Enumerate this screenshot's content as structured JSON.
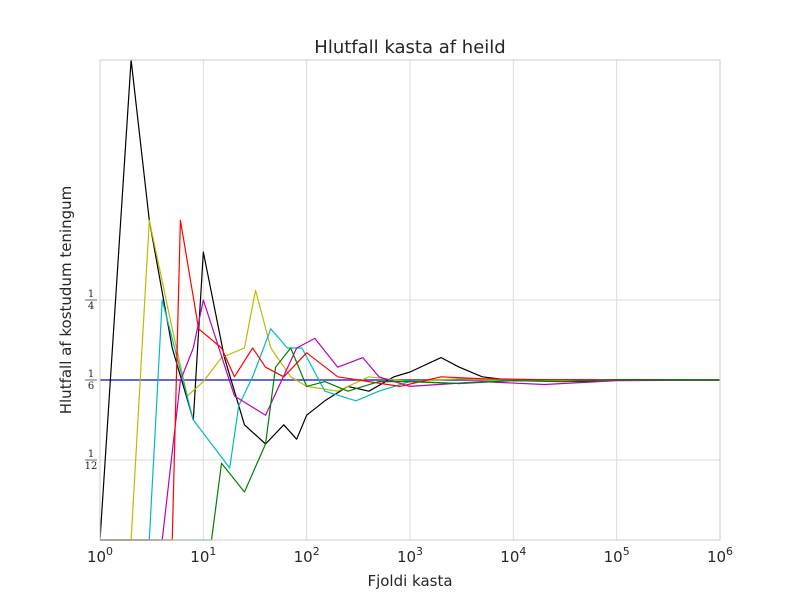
{
  "chart_data": {
    "type": "line",
    "title": "Hlutfall kasta af heild",
    "xlabel": "Fjoldi kasta",
    "ylabel": "Hlutfall af kostudum teningum",
    "x_scale": "log",
    "xlim": [
      1,
      1000000
    ],
    "ylim": [
      0,
      0.5
    ],
    "grid": true,
    "x_ticks": [
      {
        "base": "10",
        "exp": "0",
        "value": 1
      },
      {
        "base": "10",
        "exp": "1",
        "value": 10
      },
      {
        "base": "10",
        "exp": "2",
        "value": 100
      },
      {
        "base": "10",
        "exp": "3",
        "value": 1000
      },
      {
        "base": "10",
        "exp": "4",
        "value": 10000
      },
      {
        "base": "10",
        "exp": "5",
        "value": 100000
      },
      {
        "base": "10",
        "exp": "6",
        "value": 1000000
      }
    ],
    "y_ticks": [
      {
        "num": "1",
        "den": "4",
        "value": 0.25
      },
      {
        "num": "1",
        "den": "6",
        "value": 0.1667
      },
      {
        "num": "1",
        "den": "12",
        "value": 0.0833
      }
    ],
    "reference_line": {
      "value": 0.1667,
      "color": "#3333cc"
    },
    "series": [
      {
        "color": "#000000",
        "points": [
          [
            1,
            0.0
          ],
          [
            2,
            0.5
          ],
          [
            3,
            0.333
          ],
          [
            5,
            0.2
          ],
          [
            8,
            0.125
          ],
          [
            10,
            0.3
          ],
          [
            16,
            0.19
          ],
          [
            25,
            0.12
          ],
          [
            40,
            0.1
          ],
          [
            60,
            0.12
          ],
          [
            80,
            0.105
          ],
          [
            100,
            0.13
          ],
          [
            150,
            0.145
          ],
          [
            250,
            0.16
          ],
          [
            400,
            0.155
          ],
          [
            700,
            0.17
          ],
          [
            1000,
            0.175
          ],
          [
            2000,
            0.19
          ],
          [
            3000,
            0.18
          ],
          [
            5000,
            0.17
          ],
          [
            10000,
            0.166
          ],
          [
            50000,
            0.165
          ],
          [
            100000,
            0.167
          ],
          [
            1000000,
            0.1667
          ]
        ]
      },
      {
        "color": "#bbbb00",
        "points": [
          [
            1,
            0.0
          ],
          [
            2,
            0.0
          ],
          [
            3,
            0.333
          ],
          [
            5,
            0.22
          ],
          [
            7,
            0.15
          ],
          [
            10,
            0.165
          ],
          [
            15,
            0.19
          ],
          [
            25,
            0.2
          ],
          [
            32,
            0.26
          ],
          [
            45,
            0.2
          ],
          [
            70,
            0.17
          ],
          [
            100,
            0.16
          ],
          [
            200,
            0.155
          ],
          [
            400,
            0.17
          ],
          [
            1000,
            0.165
          ],
          [
            3000,
            0.168
          ],
          [
            10000,
            0.166
          ],
          [
            1000000,
            0.1667
          ]
        ]
      },
      {
        "color": "#00bbbb",
        "points": [
          [
            1,
            0.0
          ],
          [
            3,
            0.0
          ],
          [
            4,
            0.25
          ],
          [
            8,
            0.125
          ],
          [
            12,
            0.1
          ],
          [
            18,
            0.075
          ],
          [
            22,
            0.14
          ],
          [
            30,
            0.17
          ],
          [
            45,
            0.22
          ],
          [
            65,
            0.2
          ],
          [
            90,
            0.2
          ],
          [
            150,
            0.155
          ],
          [
            300,
            0.145
          ],
          [
            500,
            0.155
          ],
          [
            1000,
            0.165
          ],
          [
            3000,
            0.163
          ],
          [
            10000,
            0.167
          ],
          [
            1000000,
            0.1667
          ]
        ]
      },
      {
        "color": "#bb00bb",
        "points": [
          [
            1,
            0.0
          ],
          [
            4,
            0.0
          ],
          [
            6,
            0.166
          ],
          [
            8,
            0.2
          ],
          [
            10,
            0.25
          ],
          [
            20,
            0.15
          ],
          [
            40,
            0.13
          ],
          [
            80,
            0.2
          ],
          [
            120,
            0.21
          ],
          [
            200,
            0.18
          ],
          [
            350,
            0.19
          ],
          [
            500,
            0.17
          ],
          [
            1000,
            0.16
          ],
          [
            5000,
            0.165
          ],
          [
            20000,
            0.162
          ],
          [
            100000,
            0.166
          ],
          [
            1000000,
            0.1667
          ]
        ]
      },
      {
        "color": "#ff0000",
        "points": [
          [
            1,
            0.0
          ],
          [
            5,
            0.0
          ],
          [
            6,
            0.333
          ],
          [
            9,
            0.22
          ],
          [
            15,
            0.2
          ],
          [
            20,
            0.17
          ],
          [
            30,
            0.2
          ],
          [
            40,
            0.18
          ],
          [
            60,
            0.17
          ],
          [
            100,
            0.195
          ],
          [
            200,
            0.17
          ],
          [
            400,
            0.165
          ],
          [
            800,
            0.16
          ],
          [
            2000,
            0.17
          ],
          [
            5000,
            0.168
          ],
          [
            20000,
            0.167
          ],
          [
            1000000,
            0.1667
          ]
        ]
      },
      {
        "color": "#008000",
        "points": [
          [
            1,
            0.0
          ],
          [
            12,
            0.0
          ],
          [
            15,
            0.08
          ],
          [
            25,
            0.05
          ],
          [
            40,
            0.1
          ],
          [
            50,
            0.18
          ],
          [
            70,
            0.2
          ],
          [
            100,
            0.16
          ],
          [
            150,
            0.165
          ],
          [
            250,
            0.155
          ],
          [
            500,
            0.165
          ],
          [
            1000,
            0.165
          ],
          [
            3000,
            0.163
          ],
          [
            10000,
            0.166
          ],
          [
            30000,
            0.165
          ],
          [
            100000,
            0.167
          ],
          [
            1000000,
            0.1667
          ]
        ]
      }
    ]
  }
}
